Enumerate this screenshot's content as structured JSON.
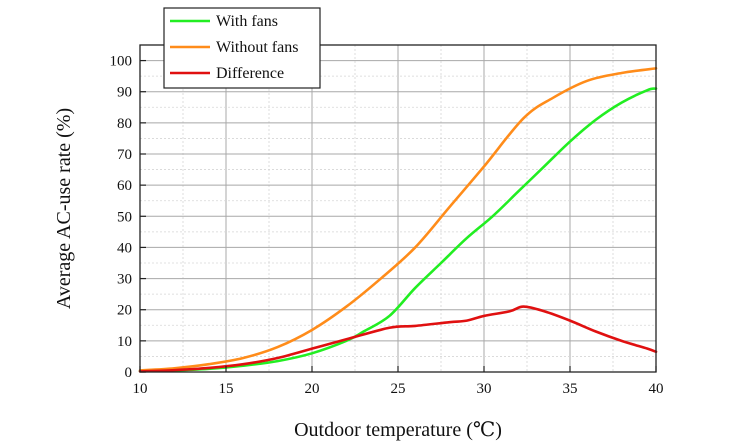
{
  "chart_data": {
    "type": "line",
    "xlabel": "Outdoor temperature (℃)",
    "ylabel": "Average AC-use rate (%)",
    "xlim": [
      10,
      40
    ],
    "ylim": [
      0,
      105
    ],
    "xticks": [
      10,
      15,
      20,
      25,
      30,
      35,
      40
    ],
    "yticks": [
      0,
      10,
      20,
      30,
      40,
      50,
      60,
      70,
      80,
      90,
      100
    ],
    "grid": true,
    "legend_position": "top-left",
    "series": [
      {
        "name": "With fans",
        "color": "#22ee22",
        "x": [
          10,
          12,
          14,
          16,
          18,
          20,
          22,
          23,
          24.5,
          26,
          27.5,
          29,
          30.5,
          32,
          33.5,
          35,
          36.5,
          38,
          39.5,
          40
        ],
        "y": [
          0.3,
          0.5,
          1.0,
          2.0,
          3.5,
          6.0,
          10.0,
          13.0,
          18.0,
          27.0,
          35.0,
          43.0,
          50.0,
          58.0,
          66.0,
          74.0,
          81.0,
          86.5,
          90.5,
          91.0
        ]
      },
      {
        "name": "Without fans",
        "color": "#ff8c1a",
        "x": [
          10,
          12,
          14,
          16,
          18,
          20,
          22,
          24,
          26,
          28,
          30,
          32.3,
          34,
          36,
          38,
          40
        ],
        "y": [
          0.5,
          1.2,
          2.5,
          4.5,
          8.0,
          13.5,
          21.0,
          30.0,
          40.0,
          53.0,
          66.0,
          81.5,
          88.0,
          93.5,
          96.0,
          97.5
        ]
      },
      {
        "name": "Difference",
        "color": "#e01010",
        "x": [
          10,
          12,
          14,
          16,
          18,
          20,
          22,
          24.5,
          26,
          28,
          29,
          30,
          31.5,
          32.3,
          33.5,
          35,
          36.5,
          38,
          39.5,
          40
        ],
        "y": [
          0.2,
          0.6,
          1.3,
          2.5,
          4.5,
          7.5,
          10.5,
          14.2,
          14.8,
          16.0,
          16.5,
          18.0,
          19.5,
          21.0,
          19.5,
          16.5,
          13.0,
          10.0,
          7.5,
          6.5
        ]
      }
    ]
  }
}
